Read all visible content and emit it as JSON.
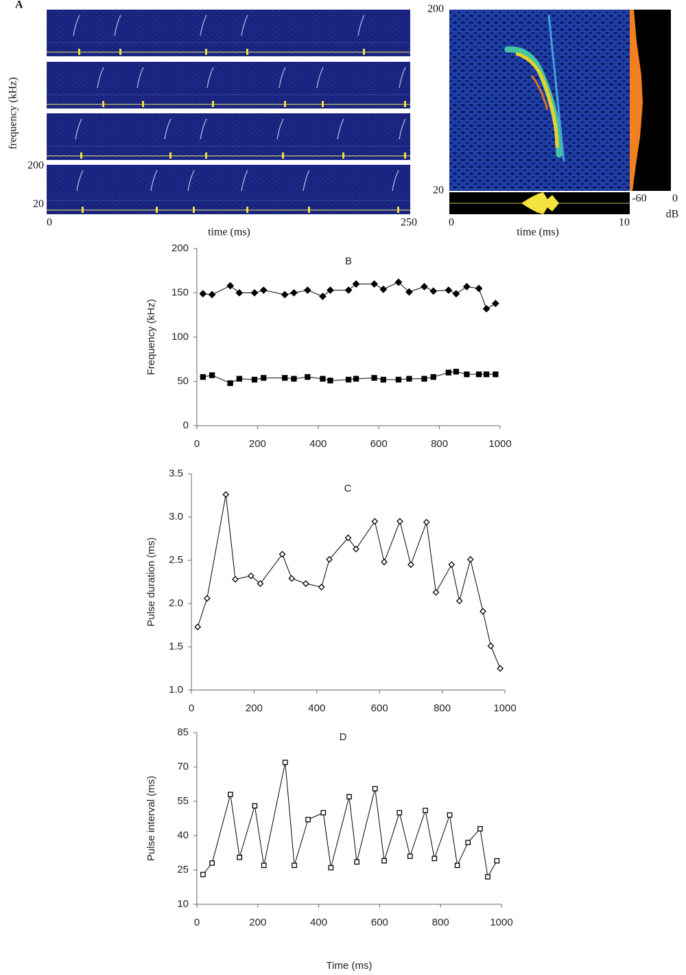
{
  "chart_data": [
    {
      "type": "spectrogram",
      "title": "A",
      "ylabel": "frequency (kHz)",
      "xlabel": "time (ms)",
      "xlim": [
        0,
        250
      ],
      "xticks": [
        0,
        250
      ],
      "ylim": [
        20,
        200
      ],
      "yticks": [
        20,
        200
      ]
    },
    {
      "type": "spectrogram",
      "xlabel": "time (ms)",
      "xlim": [
        0,
        10
      ],
      "xticks": [
        0,
        10
      ],
      "ylim": [
        20,
        200
      ],
      "yticks": [
        20,
        200
      ],
      "amplitude_xlim": [
        -60,
        0
      ],
      "amplitude_xticks": [
        -60,
        0
      ],
      "amplitude_label": "dB"
    },
    {
      "type": "line",
      "title": "B",
      "ylabel": "Frequency (kHz)",
      "x": [
        20,
        50,
        110,
        140,
        190,
        220,
        290,
        320,
        365,
        415,
        440,
        500,
        525,
        585,
        615,
        665,
        700,
        750,
        780,
        830,
        855,
        890,
        930,
        955,
        985
      ],
      "series": [
        {
          "color": "#000000",
          "marker": "diamond",
          "filled": true,
          "values": [
            149,
            148,
            158,
            150,
            150,
            153,
            148,
            150,
            153,
            146,
            153,
            153,
            160,
            160,
            154,
            162,
            151,
            157,
            152,
            153,
            149,
            157,
            155,
            132,
            138
          ]
        },
        {
          "color": "#000000",
          "marker": "square",
          "filled": true,
          "values": [
            55,
            57,
            48,
            53,
            52,
            54,
            54,
            53,
            55,
            53,
            51,
            52,
            53,
            54,
            52,
            52,
            53,
            53,
            55,
            60,
            61,
            58,
            58,
            58,
            58
          ]
        }
      ],
      "xlim": [
        0,
        1000
      ],
      "xticks": [
        0,
        200,
        400,
        600,
        800,
        1000
      ],
      "ylim": [
        0,
        200
      ],
      "yticks": [
        0,
        50,
        100,
        150,
        200
      ],
      "grid": false
    },
    {
      "type": "line",
      "title": "C",
      "ylabel": "Pulse duration (ms)",
      "x": [
        20,
        50,
        110,
        140,
        190,
        220,
        290,
        320,
        365,
        415,
        440,
        500,
        525,
        585,
        615,
        665,
        700,
        750,
        780,
        830,
        855,
        890,
        930,
        955,
        985
      ],
      "series": [
        {
          "color": "#000000",
          "marker": "diamond",
          "filled": false,
          "values": [
            1.73,
            2.06,
            3.26,
            2.28,
            2.32,
            2.23,
            2.57,
            2.29,
            2.23,
            2.19,
            2.51,
            2.76,
            2.63,
            2.95,
            2.48,
            2.95,
            2.45,
            2.94,
            2.13,
            2.45,
            2.03,
            2.51,
            1.91,
            1.51,
            1.25
          ]
        }
      ],
      "xlim": [
        0,
        1000
      ],
      "xticks": [
        0,
        200,
        400,
        600,
        800,
        1000
      ],
      "ylim": [
        1,
        3.5
      ],
      "yticks": [
        {
          "value": 1,
          "label": "1.0"
        },
        1.5,
        {
          "value": 2,
          "label": "2.0"
        },
        2.5,
        {
          "value": 3,
          "label": "3.0"
        },
        3.5
      ],
      "grid": false
    },
    {
      "type": "line",
      "title": "D",
      "ylabel": "Pulse interval (ms)",
      "xlabel": "Time (ms)",
      "x": [
        20,
        50,
        110,
        140,
        190,
        220,
        290,
        320,
        365,
        415,
        440,
        500,
        525,
        585,
        615,
        665,
        700,
        750,
        780,
        830,
        855,
        890,
        930,
        955,
        985
      ],
      "series": [
        {
          "color": "#000000",
          "marker": "square",
          "filled": false,
          "values": [
            23,
            28,
            58,
            30.5,
            53,
            27,
            72,
            27,
            47,
            50,
            26,
            57,
            28.5,
            60.5,
            29,
            50,
            31,
            51,
            30,
            49,
            27,
            37,
            43,
            22,
            29
          ]
        }
      ],
      "xlim": [
        0,
        1000
      ],
      "xticks": [
        0,
        200,
        400,
        600,
        800,
        1000
      ],
      "ylim": [
        10,
        85
      ],
      "yticks": [
        10,
        25,
        40,
        55,
        70,
        85
      ],
      "grid": false
    }
  ]
}
